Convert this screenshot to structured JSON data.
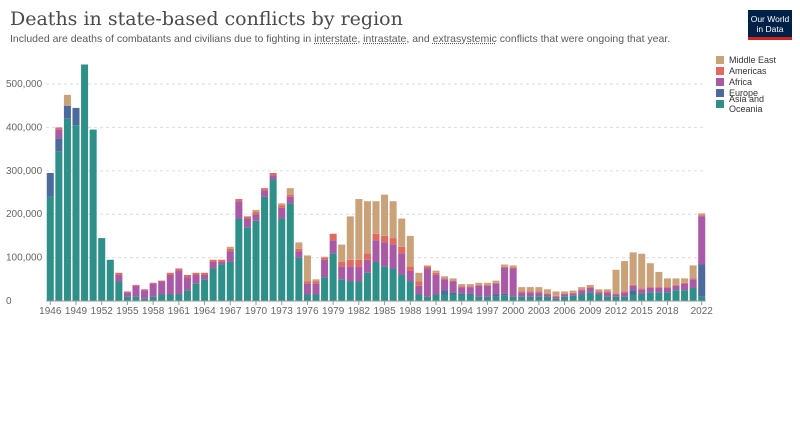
{
  "header": {
    "title": "Deaths in state-based conflicts by region",
    "subtitle_prefix": "Included are deaths of combatants and civilians due to fighting in ",
    "link1": "interstate",
    "sep1": ", ",
    "link2": "intrastate",
    "sep2": ", and ",
    "link3": "extrasystemic",
    "subtitle_suffix": " conflicts that were ongoing that year."
  },
  "logo": {
    "line1": "Our World",
    "line2": "in Data"
  },
  "colors": {
    "Middle East": "#c9a27a",
    "Americas": "#e06a5e",
    "Africa": "#a85aa6",
    "Europe": "#4c6a9c",
    "Asia and Oceania": "#2f8f89"
  },
  "chart_data": {
    "type": "bar",
    "stacked": true,
    "x": [
      1946,
      1947,
      1948,
      1949,
      1950,
      1951,
      1952,
      1953,
      1954,
      1955,
      1956,
      1957,
      1958,
      1959,
      1960,
      1961,
      1962,
      1963,
      1964,
      1965,
      1966,
      1967,
      1968,
      1969,
      1970,
      1971,
      1972,
      1973,
      1974,
      1975,
      1976,
      1977,
      1978,
      1979,
      1980,
      1981,
      1982,
      1983,
      1984,
      1985,
      1986,
      1987,
      1988,
      1989,
      1990,
      1991,
      1992,
      1993,
      1994,
      1995,
      1996,
      1997,
      1998,
      1999,
      2000,
      2001,
      2002,
      2003,
      2004,
      2005,
      2006,
      2007,
      2008,
      2009,
      2010,
      2011,
      2012,
      2013,
      2014,
      2015,
      2016,
      2017,
      2018,
      2019,
      2020,
      2021,
      2022
    ],
    "x_tick_labels": [
      "1946",
      "1949",
      "1952",
      "1955",
      "1958",
      "1961",
      "1964",
      "1967",
      "1970",
      "1973",
      "1976",
      "1979",
      "1982",
      "1985",
      "1988",
      "1991",
      "1994",
      "1997",
      "2000",
      "2003",
      "2006",
      "2009",
      "2012",
      "2015",
      "2018",
      "2022"
    ],
    "y_ticks": [
      0,
      100000,
      200000,
      300000,
      400000,
      500000
    ],
    "y_tick_labels": [
      "0",
      "100,000",
      "200,000",
      "300,000",
      "400,000",
      "500,000"
    ],
    "ylim": [
      0,
      560000
    ],
    "grid": "horizontal dashed",
    "legend_position": "right",
    "series": [
      {
        "name": "Asia and Oceania",
        "values": [
          240000,
          345000,
          420000,
          405000,
          545000,
          395000,
          145000,
          95000,
          45000,
          10000,
          10000,
          5000,
          10000,
          15000,
          15000,
          15000,
          25000,
          40000,
          50000,
          75000,
          85000,
          90000,
          190000,
          170000,
          185000,
          240000,
          280000,
          190000,
          225000,
          100000,
          15000,
          15000,
          55000,
          110000,
          50000,
          45000,
          45000,
          65000,
          90000,
          80000,
          75000,
          60000,
          45000,
          15000,
          10000,
          15000,
          15000,
          15000,
          15000,
          15000,
          10000,
          10000,
          10000,
          12000,
          10000,
          10000,
          10000,
          10000,
          10000,
          5000,
          10000,
          12000,
          15000,
          20000,
          15000,
          10000,
          10000,
          10000,
          15000,
          15000,
          20000,
          20000,
          20000,
          25000,
          25000,
          30000,
          10000
        ]
      },
      {
        "name": "Europe",
        "values": [
          55000,
          30000,
          30000,
          40000,
          0,
          0,
          0,
          0,
          0,
          0,
          0,
          0,
          0,
          0,
          0,
          0,
          0,
          0,
          0,
          0,
          0,
          0,
          0,
          0,
          0,
          0,
          0,
          0,
          0,
          0,
          0,
          0,
          0,
          0,
          0,
          0,
          0,
          0,
          0,
          0,
          0,
          0,
          0,
          0,
          0,
          0,
          10000,
          5000,
          2000,
          2000,
          0,
          0,
          5000,
          5000,
          0,
          0,
          0,
          0,
          0,
          0,
          0,
          0,
          0,
          0,
          0,
          0,
          0,
          0,
          10000,
          2000,
          0,
          0,
          0,
          0,
          0,
          0,
          75000
        ]
      },
      {
        "name": "Africa",
        "values": [
          0,
          20000,
          0,
          0,
          0,
          0,
          0,
          0,
          15000,
          10000,
          25000,
          20000,
          30000,
          30000,
          45000,
          55000,
          30000,
          20000,
          10000,
          15000,
          5000,
          25000,
          40000,
          20000,
          15000,
          15000,
          10000,
          25000,
          15000,
          15000,
          25000,
          25000,
          40000,
          30000,
          30000,
          35000,
          35000,
          30000,
          50000,
          55000,
          55000,
          50000,
          25000,
          20000,
          65000,
          45000,
          25000,
          25000,
          15000,
          15000,
          25000,
          25000,
          25000,
          60000,
          65000,
          10000,
          10000,
          10000,
          5000,
          5000,
          5000,
          5000,
          10000,
          10000,
          5000,
          10000,
          5000,
          10000,
          10000,
          10000,
          10000,
          10000,
          10000,
          10000,
          15000,
          20000,
          110000
        ]
      },
      {
        "name": "Americas",
        "values": [
          0,
          5000,
          0,
          0,
          0,
          0,
          0,
          0,
          5000,
          2000,
          2000,
          2000,
          2000,
          2000,
          5000,
          5000,
          5000,
          5000,
          5000,
          5000,
          5000,
          5000,
          5000,
          5000,
          5000,
          5000,
          5000,
          5000,
          5000,
          5000,
          5000,
          5000,
          5000,
          15000,
          10000,
          15000,
          15000,
          15000,
          15000,
          15000,
          15000,
          15000,
          10000,
          10000,
          5000,
          5000,
          2000,
          2000,
          2000,
          2000,
          2000,
          2000,
          2000,
          2000,
          2000,
          2000,
          2000,
          2000,
          2000,
          2000,
          2000,
          2000,
          2000,
          2000,
          2000,
          2000,
          2000,
          2000,
          2000,
          2000,
          2000,
          2000,
          2000,
          2000,
          2000,
          2000,
          2000
        ]
      },
      {
        "name": "Middle East",
        "values": [
          0,
          0,
          25000,
          0,
          0,
          0,
          0,
          0,
          0,
          0,
          0,
          0,
          0,
          0,
          0,
          0,
          0,
          0,
          0,
          0,
          0,
          5000,
          0,
          0,
          5000,
          0,
          0,
          5000,
          15000,
          15000,
          60000,
          5000,
          2000,
          0,
          40000,
          100000,
          140000,
          120000,
          75000,
          95000,
          85000,
          65000,
          70000,
          20000,
          2000,
          5000,
          5000,
          5000,
          5000,
          5000,
          5000,
          5000,
          5000,
          5000,
          5000,
          10000,
          10000,
          10000,
          10000,
          10000,
          5000,
          5000,
          5000,
          5000,
          5000,
          5000,
          55000,
          70000,
          75000,
          80000,
          55000,
          35000,
          20000,
          15000,
          10000,
          30000,
          5000
        ]
      }
    ]
  }
}
